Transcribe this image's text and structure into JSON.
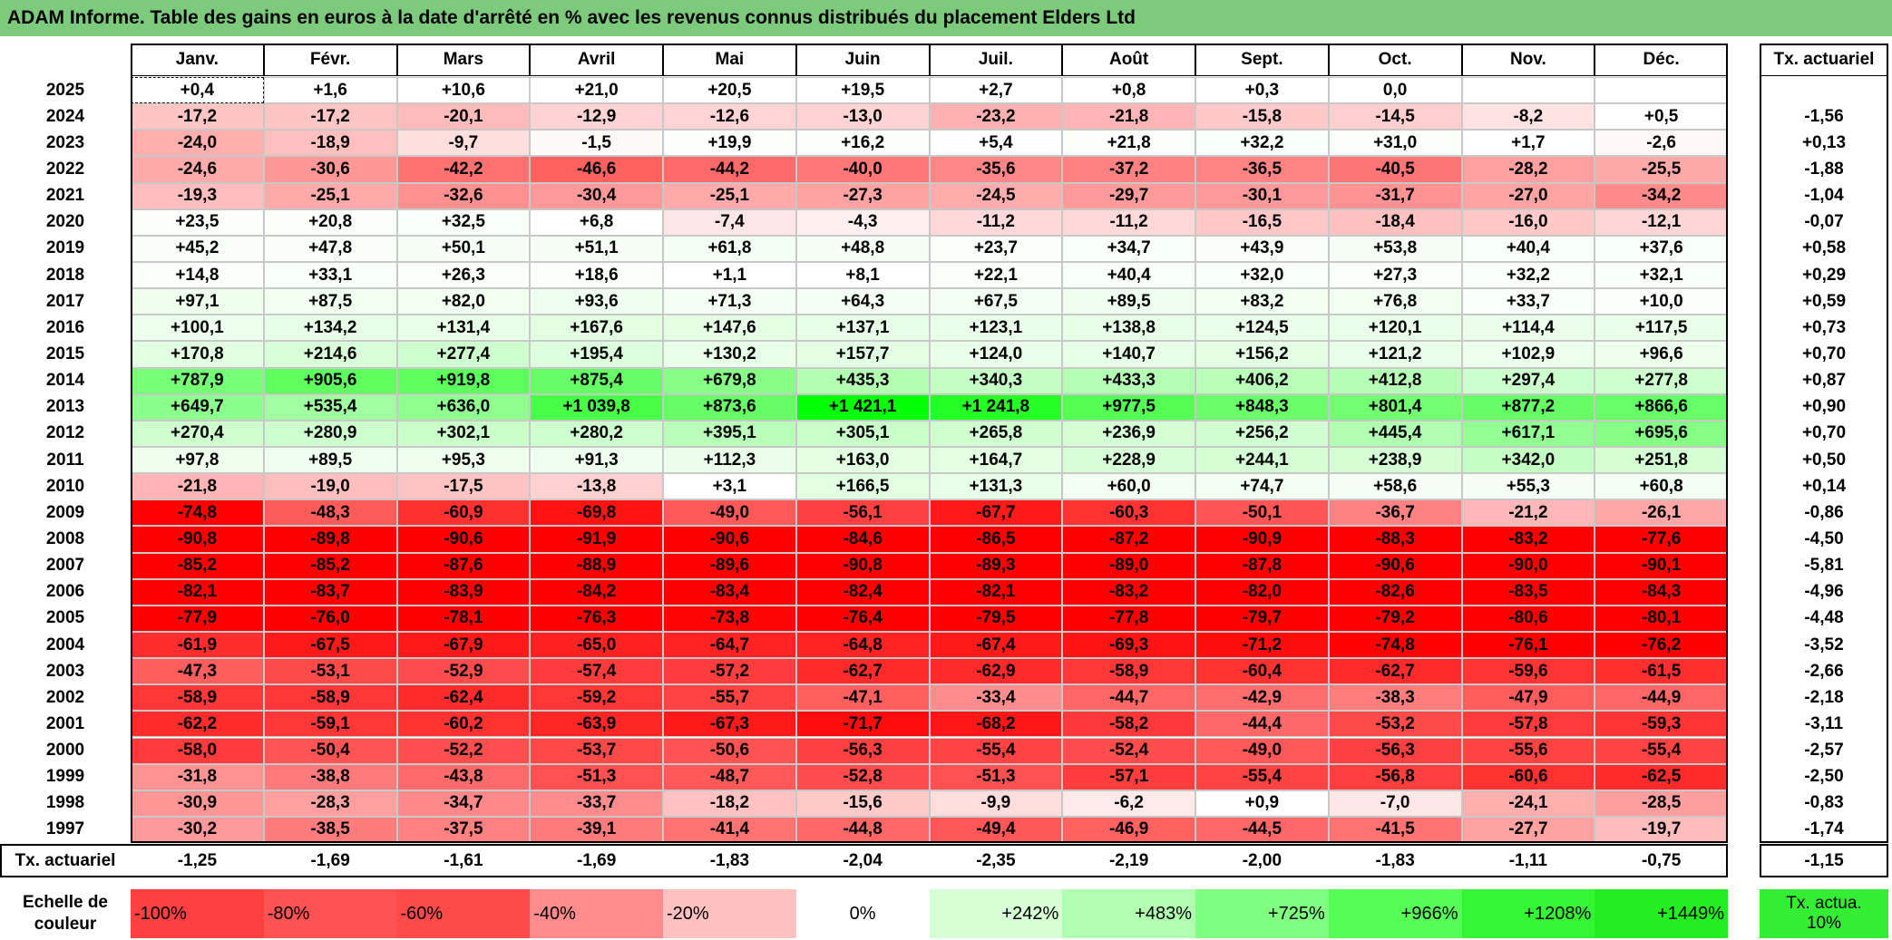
{
  "title": "ADAM Informe. Table des gains en euros à la date d'arrêté en % avec les revenus connus distribués du placement Elders Ltd",
  "table": {
    "columns": [
      "Janv.",
      "Févr.",
      "Mars",
      "Avril",
      "Mai",
      "Juin",
      "Juil.",
      "Août",
      "Sept.",
      "Oct.",
      "Nov.",
      "Déc."
    ],
    "rate_header": "Tx. actuariel",
    "rows": [
      {
        "year": "2025",
        "cells": [
          "+0,4",
          "+1,6",
          "+10,6",
          "+21,0",
          "+20,5",
          "+19,5",
          "+2,7",
          "+0,8",
          "+0,3",
          "0,0",
          null,
          null
        ],
        "rate": null
      },
      {
        "year": "2024",
        "cells": [
          "-17,2",
          "-17,2",
          "-20,1",
          "-12,9",
          "-12,6",
          "-13,0",
          "-23,2",
          "-21,8",
          "-15,8",
          "-14,5",
          "-8,2",
          "+0,5"
        ],
        "rate": "-1,56"
      },
      {
        "year": "2023",
        "cells": [
          "-24,0",
          "-18,9",
          "-9,7",
          "-1,5",
          "+19,9",
          "+16,2",
          "+5,4",
          "+21,8",
          "+32,2",
          "+31,0",
          "+1,7",
          "-2,6"
        ],
        "rate": "+0,13"
      },
      {
        "year": "2022",
        "cells": [
          "-24,6",
          "-30,6",
          "-42,2",
          "-46,6",
          "-44,2",
          "-40,0",
          "-35,6",
          "-37,2",
          "-36,5",
          "-40,5",
          "-28,2",
          "-25,5"
        ],
        "rate": "-1,88"
      },
      {
        "year": "2021",
        "cells": [
          "-19,3",
          "-25,1",
          "-32,6",
          "-30,4",
          "-25,1",
          "-27,3",
          "-24,5",
          "-29,7",
          "-30,1",
          "-31,7",
          "-27,0",
          "-34,2"
        ],
        "rate": "-1,04"
      },
      {
        "year": "2020",
        "cells": [
          "+23,5",
          "+20,8",
          "+32,5",
          "+6,8",
          "-7,4",
          "-4,3",
          "-11,2",
          "-11,2",
          "-16,5",
          "-18,4",
          "-16,0",
          "-12,1"
        ],
        "rate": "-0,07"
      },
      {
        "year": "2019",
        "cells": [
          "+45,2",
          "+47,8",
          "+50,1",
          "+51,1",
          "+61,8",
          "+48,8",
          "+23,7",
          "+34,7",
          "+43,9",
          "+53,8",
          "+40,4",
          "+37,6"
        ],
        "rate": "+0,58"
      },
      {
        "year": "2018",
        "cells": [
          "+14,8",
          "+33,1",
          "+26,3",
          "+18,6",
          "+1,1",
          "+8,1",
          "+22,1",
          "+40,4",
          "+32,0",
          "+27,3",
          "+32,2",
          "+32,1"
        ],
        "rate": "+0,29"
      },
      {
        "year": "2017",
        "cells": [
          "+97,1",
          "+87,5",
          "+82,0",
          "+93,6",
          "+71,3",
          "+64,3",
          "+67,5",
          "+89,5",
          "+83,2",
          "+76,8",
          "+33,7",
          "+10,0"
        ],
        "rate": "+0,59"
      },
      {
        "year": "2016",
        "cells": [
          "+100,1",
          "+134,2",
          "+131,4",
          "+167,6",
          "+147,6",
          "+137,1",
          "+123,1",
          "+138,8",
          "+124,5",
          "+120,1",
          "+114,4",
          "+117,5"
        ],
        "rate": "+0,73"
      },
      {
        "year": "2015",
        "cells": [
          "+170,8",
          "+214,6",
          "+277,4",
          "+195,4",
          "+130,2",
          "+157,7",
          "+124,0",
          "+140,7",
          "+156,2",
          "+121,2",
          "+102,9",
          "+96,6"
        ],
        "rate": "+0,70"
      },
      {
        "year": "2014",
        "cells": [
          "+787,9",
          "+905,6",
          "+919,8",
          "+875,4",
          "+679,8",
          "+435,3",
          "+340,3",
          "+433,3",
          "+406,2",
          "+412,8",
          "+297,4",
          "+277,8"
        ],
        "rate": "+0,87"
      },
      {
        "year": "2013",
        "cells": [
          "+649,7",
          "+535,4",
          "+636,0",
          "+1 039,8",
          "+873,6",
          "+1 421,1",
          "+1 241,8",
          "+977,5",
          "+848,3",
          "+801,4",
          "+877,2",
          "+866,6"
        ],
        "rate": "+0,90"
      },
      {
        "year": "2012",
        "cells": [
          "+270,4",
          "+280,9",
          "+302,1",
          "+280,2",
          "+395,1",
          "+305,1",
          "+265,8",
          "+236,9",
          "+256,2",
          "+445,4",
          "+617,1",
          "+695,6"
        ],
        "rate": "+0,70"
      },
      {
        "year": "2011",
        "cells": [
          "+97,8",
          "+89,5",
          "+95,3",
          "+91,3",
          "+112,3",
          "+163,0",
          "+164,7",
          "+228,9",
          "+244,1",
          "+238,9",
          "+342,0",
          "+251,8"
        ],
        "rate": "+0,50"
      },
      {
        "year": "2010",
        "cells": [
          "-21,8",
          "-19,0",
          "-17,5",
          "-13,8",
          "+3,1",
          "+166,5",
          "+131,3",
          "+60,0",
          "+74,7",
          "+58,6",
          "+55,3",
          "+60,8"
        ],
        "rate": "+0,14"
      },
      {
        "year": "2009",
        "cells": [
          "-74,8",
          "-48,3",
          "-60,9",
          "-69,8",
          "-49,0",
          "-56,1",
          "-67,7",
          "-60,3",
          "-50,1",
          "-36,7",
          "-21,2",
          "-26,1"
        ],
        "rate": "-0,86"
      },
      {
        "year": "2008",
        "cells": [
          "-90,8",
          "-89,8",
          "-90,6",
          "-91,9",
          "-90,6",
          "-84,6",
          "-86,5",
          "-87,2",
          "-90,9",
          "-88,3",
          "-83,2",
          "-77,6"
        ],
        "rate": "-4,50"
      },
      {
        "year": "2007",
        "cells": [
          "-85,2",
          "-85,2",
          "-87,6",
          "-88,9",
          "-89,6",
          "-90,8",
          "-89,3",
          "-89,0",
          "-87,8",
          "-90,6",
          "-90,0",
          "-90,1"
        ],
        "rate": "-5,81"
      },
      {
        "year": "2006",
        "cells": [
          "-82,1",
          "-83,7",
          "-83,9",
          "-84,2",
          "-83,4",
          "-82,4",
          "-82,1",
          "-83,2",
          "-82,0",
          "-82,6",
          "-83,5",
          "-84,3"
        ],
        "rate": "-4,96"
      },
      {
        "year": "2005",
        "cells": [
          "-77,9",
          "-76,0",
          "-78,1",
          "-76,3",
          "-73,8",
          "-76,4",
          "-79,5",
          "-77,8",
          "-79,7",
          "-79,2",
          "-80,6",
          "-80,1"
        ],
        "rate": "-4,48"
      },
      {
        "year": "2004",
        "cells": [
          "-61,9",
          "-67,5",
          "-67,9",
          "-65,0",
          "-64,7",
          "-64,8",
          "-67,4",
          "-69,3",
          "-71,2",
          "-74,8",
          "-76,1",
          "-76,2"
        ],
        "rate": "-3,52"
      },
      {
        "year": "2003",
        "cells": [
          "-47,3",
          "-53,1",
          "-52,9",
          "-57,4",
          "-57,2",
          "-62,7",
          "-62,9",
          "-58,9",
          "-60,4",
          "-62,7",
          "-59,6",
          "-61,5"
        ],
        "rate": "-2,66"
      },
      {
        "year": "2002",
        "cells": [
          "-58,9",
          "-58,9",
          "-62,4",
          "-59,2",
          "-55,7",
          "-47,1",
          "-33,4",
          "-44,7",
          "-42,9",
          "-38,3",
          "-47,9",
          "-44,9"
        ],
        "rate": "-2,18"
      },
      {
        "year": "2001",
        "cells": [
          "-62,2",
          "-59,1",
          "-60,2",
          "-63,9",
          "-67,3",
          "-71,7",
          "-68,2",
          "-58,2",
          "-44,4",
          "-53,2",
          "-57,8",
          "-59,3"
        ],
        "rate": "-3,11"
      },
      {
        "year": "2000",
        "cells": [
          "-58,0",
          "-50,4",
          "-52,2",
          "-53,7",
          "-50,6",
          "-56,3",
          "-55,4",
          "-52,4",
          "-49,0",
          "-56,3",
          "-55,6",
          "-55,4"
        ],
        "rate": "-2,57"
      },
      {
        "year": "1999",
        "cells": [
          "-31,8",
          "-38,8",
          "-43,8",
          "-51,3",
          "-48,7",
          "-52,8",
          "-51,3",
          "-57,1",
          "-55,4",
          "-56,8",
          "-60,6",
          "-62,5"
        ],
        "rate": "-2,50"
      },
      {
        "year": "1998",
        "cells": [
          "-30,9",
          "-28,3",
          "-34,7",
          "-33,7",
          "-18,2",
          "-15,6",
          "-9,9",
          "-6,2",
          "+0,9",
          "-7,0",
          "-24,1",
          "-28,5"
        ],
        "rate": "-0,83"
      },
      {
        "year": "1997",
        "cells": [
          "-30,2",
          "-38,5",
          "-37,5",
          "-39,1",
          "-41,4",
          "-44,8",
          "-49,4",
          "-46,9",
          "-44,5",
          "-41,5",
          "-27,7",
          "-19,7"
        ],
        "rate": "-1,74"
      }
    ],
    "footer": {
      "label": "Tx. actuariel",
      "cells": [
        "-1,25",
        "-1,69",
        "-1,61",
        "-1,69",
        "-1,83",
        "-2,04",
        "-2,35",
        "-2,19",
        "-2,00",
        "-1,83",
        "-1,11",
        "-0,75"
      ],
      "rate": "-1,15"
    }
  },
  "scale": {
    "label": "Echelle de couleur",
    "steps": [
      {
        "label": "-100%",
        "color": "#ff4040"
      },
      {
        "label": "-80%",
        "color": "#ff5252"
      },
      {
        "label": "-60%",
        "color": "#ff4a4a"
      },
      {
        "label": "-40%",
        "color": "#ff8c8c"
      },
      {
        "label": "-20%",
        "color": "#ffc0c0"
      },
      {
        "label": "0%",
        "color": "#ffffff"
      },
      {
        "label": "+242%",
        "color": "#d6ffd6"
      },
      {
        "label": "+483%",
        "color": "#b0ffb0"
      },
      {
        "label": "+725%",
        "color": "#80ff80"
      },
      {
        "label": "+966%",
        "color": "#55ff55"
      },
      {
        "label": "+1208%",
        "color": "#33f533"
      },
      {
        "label": "+1449%",
        "color": "#22ee22"
      }
    ],
    "rate": {
      "label": "Tx. actua. 10%",
      "color": "#33ee33"
    }
  }
}
